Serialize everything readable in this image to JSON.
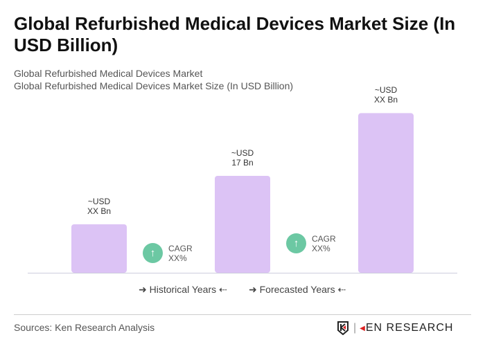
{
  "title": "Global Refurbished Medical Devices Market Size (In USD Billion)",
  "subtitle1": "Global Refurbished Medical Devices Market",
  "subtitle2": "Global Refurbished Medical Devices Market Size (In USD Billion)",
  "chart_data": {
    "type": "bar",
    "bar_color": "#dcc3f5",
    "values": [
      8.5,
      17,
      28
    ],
    "data_labels": [
      [
        "~USD",
        "XX Bn"
      ],
      [
        "~USD",
        "17 Bn"
      ],
      [
        "~USD",
        "XX Bn"
      ]
    ],
    "cagr": [
      {
        "label": "CAGR",
        "value": "XX%"
      },
      {
        "label": "CAGR",
        "value": "XX%"
      }
    ],
    "cagr_color": "#6cc8a3",
    "legend": [
      "Historical Years",
      "Forecasted Years"
    ],
    "grid": false
  },
  "sources": "Sources: Ken Research Analysis",
  "logo": "KEN RESEARCH"
}
